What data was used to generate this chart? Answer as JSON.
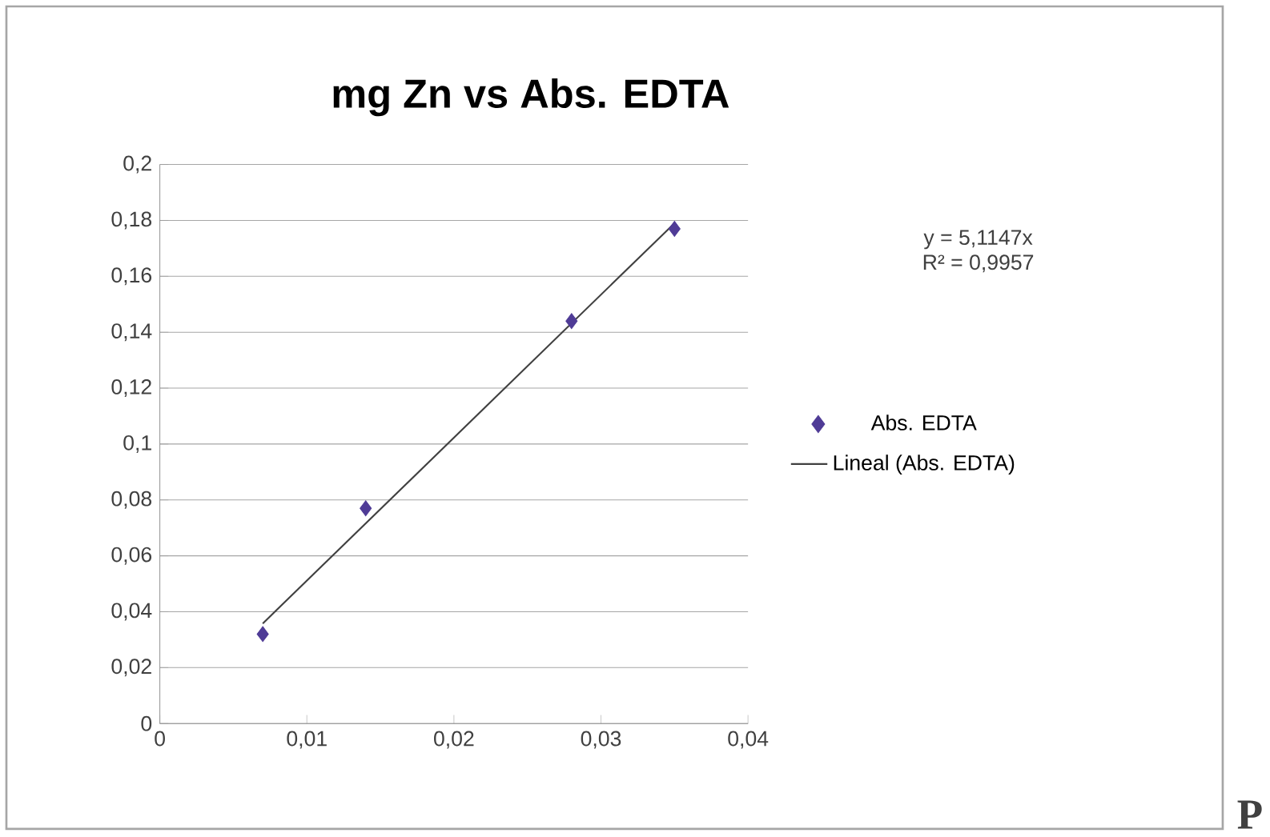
{
  "chart_data": {
    "type": "scatter",
    "title": "mg Zn vs Abs. EDTA",
    "xlim": [
      0,
      0.04
    ],
    "ylim": [
      0,
      0.2
    ],
    "xticks": [
      0,
      {
        "value": 0.01,
        "label": "0,01"
      },
      {
        "value": 0.02,
        "label": "0,02"
      },
      {
        "value": 0.03,
        "label": "0,03"
      },
      {
        "value": 0.04,
        "label": "0,04"
      }
    ],
    "yticks": [
      0,
      {
        "value": 0.02,
        "label": "0,02"
      },
      {
        "value": 0.04,
        "label": "0,04"
      },
      {
        "value": 0.06,
        "label": "0,06"
      },
      {
        "value": 0.08,
        "label": "0,08"
      },
      {
        "value": 0.1,
        "label": "0,1"
      },
      {
        "value": 0.12,
        "label": "0,12"
      },
      {
        "value": 0.14,
        "label": "0,14"
      },
      {
        "value": 0.16,
        "label": "0,16"
      },
      {
        "value": 0.18,
        "label": "0,18"
      },
      {
        "value": 0.2,
        "label": "0,2"
      }
    ],
    "grid": "y",
    "legend": "right",
    "series": [
      {
        "name": "Abs. EDTA",
        "marker": "diamond",
        "color": "#4f3b96",
        "x": [
          0.007,
          0.014,
          0.028,
          0.035
        ],
        "values": [
          0.032,
          0.077,
          0.144,
          0.177
        ]
      },
      {
        "name": "Lineal (Abs. EDTA)",
        "type": "line",
        "color": "#404040",
        "x": [
          0.007,
          0.035
        ],
        "values": [
          0.0358,
          0.179
        ]
      }
    ],
    "annotations": [
      "y = 5,1147x",
      "R² = 0,9957",
      "P"
    ]
  }
}
